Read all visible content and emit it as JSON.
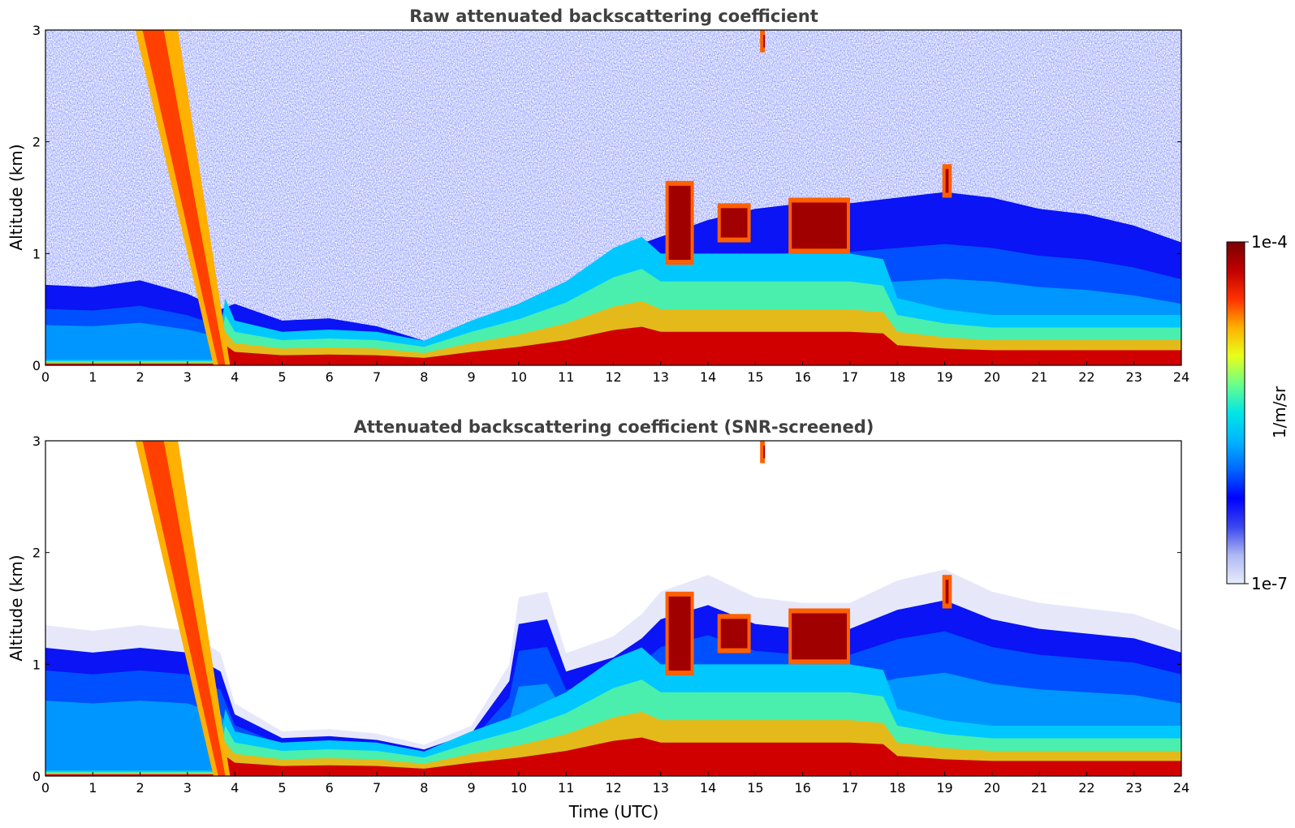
{
  "figure_units": "1/m/sr",
  "colorbar": {
    "max_label": "1e-4",
    "min_label": "1e-7",
    "unit_label": "1/m/sr",
    "vmin": 1e-07,
    "vmax": 0.0001,
    "scale": "log",
    "colormap": [
      "#e8ecfb",
      "#aeb8f2",
      "#3b46ee",
      "#0000ff",
      "#0066ff",
      "#00b4ff",
      "#00e6e6",
      "#6aff8a",
      "#e8ff1a",
      "#ffb000",
      "#ff3000",
      "#c00000",
      "#7a0000"
    ]
  },
  "chart_data": [
    {
      "type": "heatmap",
      "title": "Raw attenuated backscattering coefficient",
      "xlabel": "",
      "ylabel": "Altitude (km)",
      "xlim": [
        0,
        24
      ],
      "ylim": [
        0,
        3
      ],
      "x_ticks": [
        "0",
        "1",
        "2",
        "3",
        "4",
        "5",
        "6",
        "7",
        "8",
        "9",
        "10",
        "11",
        "12",
        "13",
        "14",
        "15",
        "16",
        "17",
        "18",
        "19",
        "20",
        "21",
        "22",
        "23",
        "24"
      ],
      "y_ticks": [
        "0",
        "1",
        "2",
        "3"
      ],
      "boundary_layer_top_km": [
        [
          0,
          0.72
        ],
        [
          1,
          0.7
        ],
        [
          2,
          0.76
        ],
        [
          3,
          0.64
        ],
        [
          3.7,
          0.5
        ],
        [
          4,
          0.55
        ],
        [
          5,
          0.4
        ],
        [
          6,
          0.42
        ],
        [
          7,
          0.35
        ],
        [
          8,
          0.22
        ],
        [
          9,
          0.35
        ],
        [
          10,
          0.55
        ],
        [
          11,
          0.75
        ],
        [
          12,
          1.0
        ],
        [
          13,
          1.15
        ],
        [
          14,
          1.3
        ],
        [
          15,
          1.4
        ],
        [
          16,
          1.45
        ],
        [
          17,
          1.45
        ],
        [
          18,
          1.5
        ],
        [
          19,
          1.55
        ],
        [
          20,
          1.5
        ],
        [
          21,
          1.4
        ],
        [
          22,
          1.35
        ],
        [
          23,
          1.25
        ],
        [
          24,
          1.1
        ]
      ],
      "aerosol_layer_top_km": [
        [
          0,
          0.05
        ],
        [
          3.6,
          0.05
        ],
        [
          3.8,
          0.6
        ],
        [
          4,
          0.4
        ],
        [
          5,
          0.3
        ],
        [
          6,
          0.32
        ],
        [
          7,
          0.3
        ],
        [
          8,
          0.22
        ],
        [
          9,
          0.4
        ],
        [
          10,
          0.55
        ],
        [
          11,
          0.75
        ],
        [
          12,
          1.05
        ],
        [
          12.6,
          1.15
        ],
        [
          13,
          1.0
        ],
        [
          14,
          1.0
        ],
        [
          15,
          1.0
        ],
        [
          16,
          1.0
        ],
        [
          17,
          1.0
        ],
        [
          17.7,
          0.95
        ],
        [
          18,
          0.6
        ],
        [
          19,
          0.5
        ],
        [
          20,
          0.45
        ],
        [
          24,
          0.45
        ]
      ],
      "clouds": [
        {
          "t_start": 1.9,
          "t_end": 3.9,
          "base_km_start": 3.0,
          "base_km_end": 0.0,
          "note": "slanted plume"
        },
        {
          "t_start": 13.1,
          "t_end": 13.7,
          "base_km": 0.9,
          "top_km": 1.65
        },
        {
          "t_start": 14.2,
          "t_end": 14.9,
          "base_km": 1.1,
          "top_km": 1.45
        },
        {
          "t_start": 15.7,
          "t_end": 17.0,
          "base_km": 1.0,
          "top_km": 1.5
        },
        {
          "t_start": 18.95,
          "t_end": 19.15,
          "base_km": 1.5,
          "top_km": 1.8
        },
        {
          "t_start": 15.1,
          "t_end": 15.2,
          "base_km": 2.8,
          "top_km": 3.0
        }
      ]
    },
    {
      "type": "heatmap",
      "title": "Attenuated backscattering coefficient (SNR-screened)",
      "xlabel": "Time (UTC)",
      "ylabel": "Altitude (km)",
      "xlim": [
        0,
        24
      ],
      "ylim": [
        0,
        3
      ],
      "x_ticks": [
        "0",
        "1",
        "2",
        "3",
        "4",
        "5",
        "6",
        "7",
        "8",
        "9",
        "10",
        "11",
        "12",
        "13",
        "14",
        "15",
        "16",
        "17",
        "18",
        "19",
        "20",
        "21",
        "22",
        "23",
        "24"
      ],
      "y_ticks": [
        "0",
        "1",
        "2",
        "3"
      ],
      "screened_top_km": [
        [
          0,
          1.35
        ],
        [
          1,
          1.3
        ],
        [
          2,
          1.35
        ],
        [
          3,
          1.3
        ],
        [
          3.7,
          1.1
        ],
        [
          4,
          0.65
        ],
        [
          5,
          0.4
        ],
        [
          6,
          0.42
        ],
        [
          7,
          0.38
        ],
        [
          8,
          0.28
        ],
        [
          9,
          0.45
        ],
        [
          9.8,
          1.0
        ],
        [
          10,
          1.6
        ],
        [
          10.6,
          1.65
        ],
        [
          11,
          1.1
        ],
        [
          12,
          1.25
        ],
        [
          12.6,
          1.45
        ],
        [
          13,
          1.65
        ],
        [
          14,
          1.8
        ],
        [
          15,
          1.6
        ],
        [
          16,
          1.55
        ],
        [
          17,
          1.55
        ],
        [
          18,
          1.75
        ],
        [
          19,
          1.85
        ],
        [
          20,
          1.65
        ],
        [
          21,
          1.55
        ],
        [
          22,
          1.5
        ],
        [
          23,
          1.45
        ],
        [
          24,
          1.3
        ]
      ]
    }
  ]
}
